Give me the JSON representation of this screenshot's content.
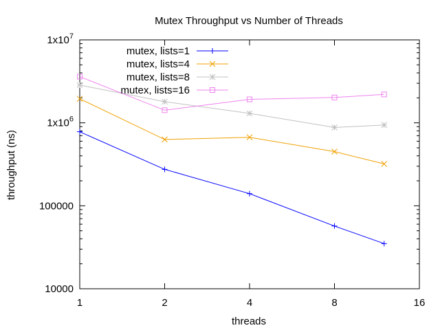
{
  "chart_data": {
    "type": "line",
    "title": "Mutex Throughput vs Number of Threads",
    "xlabel": "threads",
    "ylabel": "throughput (ns)",
    "x_scale": "log2",
    "y_scale": "log10",
    "xlim": [
      1,
      16
    ],
    "ylim": [
      10000,
      10000000
    ],
    "x_ticks": [
      {
        "value": 1,
        "label": "1"
      },
      {
        "value": 2,
        "label": "2"
      },
      {
        "value": 4,
        "label": "4"
      },
      {
        "value": 8,
        "label": "8"
      },
      {
        "value": 16,
        "label": "16"
      }
    ],
    "y_ticks": [
      {
        "value": 10000,
        "label": "10000",
        "sup": ""
      },
      {
        "value": 100000,
        "label": "100000",
        "sup": ""
      },
      {
        "value": 1000000,
        "label": "1x10",
        "sup": "6"
      },
      {
        "value": 10000000,
        "label": "1x10",
        "sup": "7"
      }
    ],
    "grid": false,
    "legend_position": "top-left",
    "x": [
      1,
      2,
      4,
      8,
      12
    ],
    "series": [
      {
        "name": "mutex, lists=1",
        "color": "#0000ff",
        "marker": "plus",
        "values": [
          780000,
          275000,
          140000,
          57000,
          35000
        ]
      },
      {
        "name": "mutex, lists=4",
        "color": "#f0a000",
        "marker": "cross",
        "values": [
          1950000,
          630000,
          670000,
          450000,
          320000
        ]
      },
      {
        "name": "mutex, lists=8",
        "color": "#c0c0c0",
        "marker": "star",
        "values": [
          2850000,
          1800000,
          1300000,
          880000,
          940000
        ]
      },
      {
        "name": "mutex, lists=16",
        "color": "#ee82ee",
        "marker": "square",
        "values": [
          3600000,
          1420000,
          1920000,
          2020000,
          2200000
        ]
      }
    ]
  }
}
